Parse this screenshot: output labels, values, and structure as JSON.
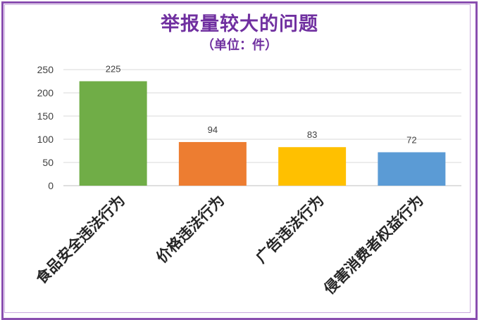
{
  "chart_data": {
    "type": "bar",
    "title": "举报量较大的问题",
    "subtitle": "（单位：件）",
    "categories": [
      "食品安全违法行为",
      "价格违法行为",
      "广告违法行为",
      "侵害消费者权益行为"
    ],
    "values": [
      225,
      94,
      83,
      72
    ],
    "colors": [
      "#70ad47",
      "#ed7d31",
      "#ffc000",
      "#5b9bd5"
    ],
    "ylim": [
      0,
      250
    ],
    "yticks": [
      0,
      50,
      100,
      150,
      200,
      250
    ],
    "grid": true,
    "legend": "none",
    "xlabel": "",
    "ylabel": ""
  }
}
